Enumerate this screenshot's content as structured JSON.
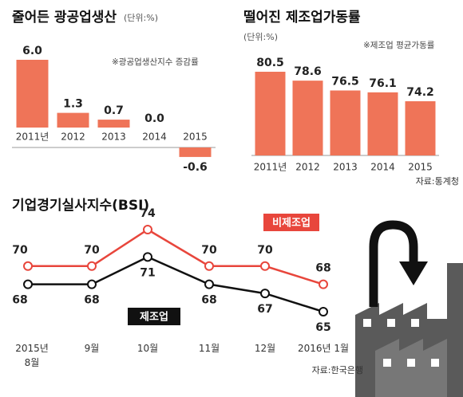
{
  "chart_data": [
    {
      "type": "bar",
      "title": "줄어든 광공업생산",
      "unit": "(단위:%)",
      "note": "※광공업생산지수 증감률",
      "categories": [
        "2011년",
        "2012",
        "2013",
        "2014",
        "2015"
      ],
      "values": [
        6.0,
        1.3,
        0.7,
        0.0,
        -0.6
      ],
      "value_labels": [
        "6.0",
        "1.3",
        "0.7",
        "0.0",
        "-0.6"
      ],
      "color": "#ef7458"
    },
    {
      "type": "bar",
      "title": "떨어진 제조업가동률",
      "unit": "(단위:%)",
      "note": "※제조업 평균가동률",
      "source": "자료:통계청",
      "categories": [
        "2011년",
        "2012",
        "2013",
        "2014",
        "2015"
      ],
      "values": [
        80.5,
        78.6,
        76.5,
        76.1,
        74.2
      ],
      "color": "#ef7458"
    },
    {
      "type": "line",
      "title": "기업경기실사지수(BSI)",
      "source": "자료:한국은행",
      "categories": [
        "2015년 8월",
        "9월",
        "10월",
        "11월",
        "12월",
        "2016년 1월"
      ],
      "series": [
        {
          "name": "비제조업",
          "color": "#e8463c",
          "values": [
            70,
            70,
            74,
            70,
            70,
            68
          ]
        },
        {
          "name": "제조업",
          "color": "#111111",
          "values": [
            68,
            68,
            71,
            68,
            67,
            65
          ]
        }
      ]
    }
  ]
}
